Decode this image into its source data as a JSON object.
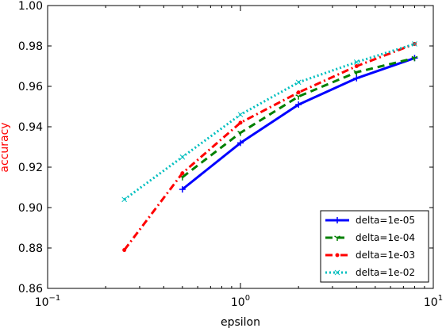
{
  "chart_data": {
    "type": "line",
    "xscale": "log",
    "xlabel": "epsilon",
    "ylabel": "accuracy",
    "ylabel_color": "#ff0000",
    "xlim": [
      0.1,
      10
    ],
    "ylim": [
      0.86,
      1.0
    ],
    "x_ticks": [
      {
        "value": 0.1,
        "base": "10",
        "exp": "−1"
      },
      {
        "value": 1,
        "base": "10",
        "exp": "0"
      },
      {
        "value": 10,
        "base": "10",
        "exp": "1"
      }
    ],
    "y_ticks": [
      "0.86",
      "0.88",
      "0.90",
      "0.92",
      "0.94",
      "0.96",
      "0.98",
      "1.00"
    ],
    "grid": false,
    "legend_position": "lower-right",
    "series": [
      {
        "name": "delta=1e-05",
        "color": "#0000ff",
        "style": "solid",
        "marker": "plus",
        "x": [
          0.5,
          1,
          2,
          4,
          8
        ],
        "y": [
          0.909,
          0.932,
          0.951,
          0.964,
          0.974
        ]
      },
      {
        "name": "delta=1e-04",
        "color": "#008000",
        "style": "dashed",
        "marker": "tri",
        "x": [
          0.5,
          1,
          2,
          4,
          8
        ],
        "y": [
          0.915,
          0.937,
          0.955,
          0.967,
          0.974
        ]
      },
      {
        "name": "delta=1e-03",
        "color": "#ff0000",
        "style": "dashdot",
        "marker": "dot",
        "x": [
          0.25,
          0.5,
          1,
          2,
          4,
          8
        ],
        "y": [
          0.879,
          0.917,
          0.942,
          0.957,
          0.97,
          0.981
        ]
      },
      {
        "name": "delta=1e-02",
        "color": "#00bfbf",
        "style": "dotted",
        "marker": "x",
        "x": [
          0.25,
          0.5,
          1,
          2,
          4,
          8
        ],
        "y": [
          0.904,
          0.925,
          0.946,
          0.962,
          0.972,
          0.981
        ]
      }
    ]
  }
}
